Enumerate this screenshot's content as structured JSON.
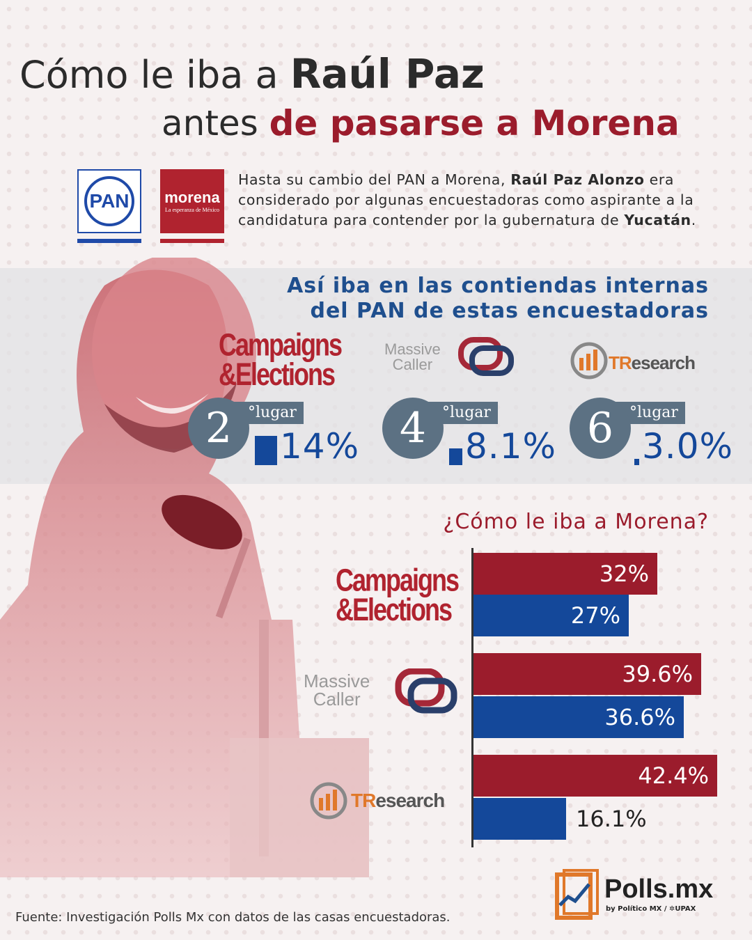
{
  "header": {
    "title_plain": "Cómo le iba a ",
    "title_bold": "Raúl Paz",
    "subtitle_plain": "antes ",
    "subtitle_accent": "de pasarse a Morena"
  },
  "logos": {
    "pan": "PAN",
    "morena": "morena",
    "morena_tagline": "La esperanza de México"
  },
  "intro": {
    "part1": "Hasta su cambio del PAN a Morena, ",
    "name": "Raúl Paz Alonzo",
    "part2": " era considerado por algunas encuestadoras como aspirante a la candidatura para contender por la gubernatura de ",
    "state": "Yucatán",
    "part3": "."
  },
  "pan_section": {
    "title_line1": "Así iba en las contiendas internas",
    "title_line2": "del PAN de estas encuestadoras",
    "pollsters": [
      {
        "logo_line1": "Campaigns",
        "logo_line2": "&Elections",
        "rank": "2",
        "rank_suffix": "°lugar",
        "value_label": "14%"
      },
      {
        "logo_line1": "Massive",
        "logo_line2": "Caller",
        "rank": "4",
        "rank_suffix": "°lugar",
        "value_label": "8.1%"
      },
      {
        "logo_line1": "TR",
        "logo_line2": "esearch",
        "rank": "6",
        "rank_suffix": "°lugar",
        "value_label": "3.0%"
      }
    ]
  },
  "morena_section": {
    "question": "¿Cómo le iba a Morena?"
  },
  "colors": {
    "morena_red": "#9b1c2c",
    "pan_blue": "#14489a",
    "rank_gray": "#5c7183"
  },
  "chart_data": [
    {
      "type": "bar",
      "orientation": "vertical",
      "categories": [
        "Campaigns&Elections",
        "Massive Caller",
        "TResearch"
      ],
      "values": [
        14,
        8.1,
        3.0
      ],
      "rank": [
        2,
        4,
        6
      ],
      "value_labels": [
        "14%",
        "8.1%",
        "3.0%"
      ]
    },
    {
      "type": "bar",
      "orientation": "horizontal",
      "categories": [
        "Campaigns&Elections",
        "Massive Caller",
        "TResearch"
      ],
      "series": [
        {
          "color": "#9b1c2c",
          "values": [
            32,
            39.6,
            42.4
          ],
          "labels": [
            "32%",
            "39.6%",
            "42.4%"
          ]
        },
        {
          "color": "#14489a",
          "values": [
            27,
            36.6,
            16.1
          ],
          "labels": [
            "27%",
            "36.6%",
            "16.1%"
          ]
        }
      ],
      "xlim": [
        0,
        50
      ]
    }
  ],
  "footer": {
    "source": "Fuente: Investigación Polls Mx con datos de las casas encuestadoras.",
    "brand": "Polls.mx",
    "brand_by": "by Político MX / ✲UPAX"
  }
}
